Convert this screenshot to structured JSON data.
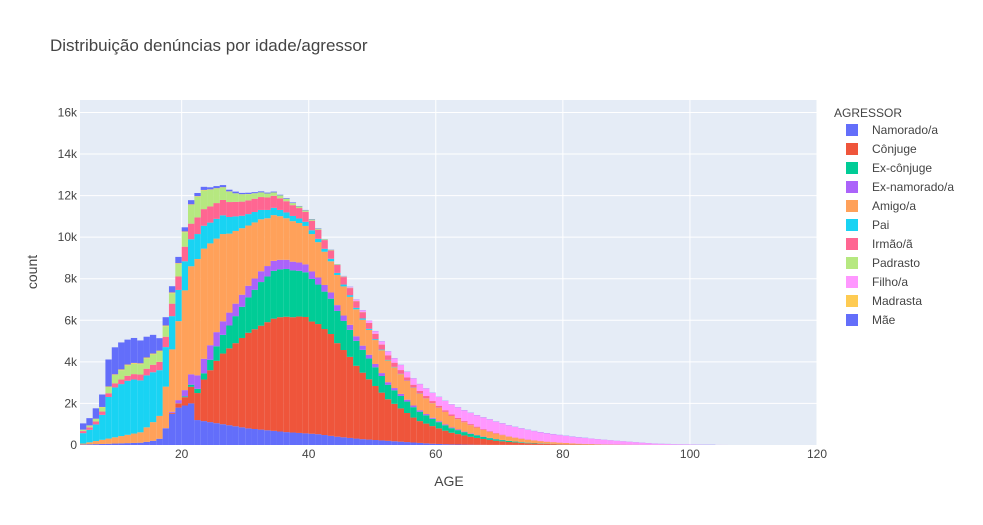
{
  "chart_data": {
    "type": "bar",
    "barmode": "stack",
    "title": "Distribuição denúncias por idade/agressor",
    "xlabel": "AGE",
    "ylabel": "count",
    "xlim": [
      4,
      120
    ],
    "ylim": [
      0,
      16600
    ],
    "xticks": [
      20,
      40,
      60,
      80,
      100,
      120
    ],
    "xtick_labels": [
      "20",
      "40",
      "60",
      "80",
      "100",
      "120"
    ],
    "yticks": [
      0,
      2000,
      4000,
      6000,
      8000,
      10000,
      12000,
      14000,
      16000
    ],
    "ytick_labels": [
      "0",
      "2k",
      "4k",
      "6k",
      "8k",
      "10k",
      "12k",
      "14k",
      "16k"
    ],
    "grid": true,
    "legend_title": "AGRESSOR",
    "legend_position": "right",
    "bin_width": 1,
    "x": [
      4,
      5,
      6,
      7,
      8,
      9,
      10,
      11,
      12,
      13,
      14,
      15,
      16,
      17,
      18,
      19,
      20,
      21,
      22,
      23,
      24,
      25,
      26,
      27,
      28,
      29,
      30,
      31,
      32,
      33,
      34,
      35,
      36,
      37,
      38,
      39,
      40,
      41,
      42,
      43,
      44,
      45,
      46,
      47,
      48,
      49,
      50,
      51,
      52,
      53,
      54,
      55,
      56,
      57,
      58,
      59,
      60,
      61,
      62,
      63,
      64,
      65,
      66,
      67,
      68,
      69,
      70,
      71,
      72,
      73,
      74,
      75,
      76,
      77,
      78,
      79,
      80,
      81,
      82,
      83,
      84,
      85,
      86,
      87,
      88,
      89,
      90,
      91,
      92,
      93,
      94,
      95,
      96,
      97,
      98,
      99,
      100,
      101,
      102,
      103,
      104,
      105
    ],
    "series": [
      {
        "name": "Namorado/a",
        "color": "#636efa",
        "values": [
          20,
          30,
          40,
          50,
          60,
          70,
          80,
          90,
          100,
          110,
          150,
          200,
          300,
          800,
          1500,
          1800,
          1900,
          2000,
          1200,
          1150,
          1100,
          1050,
          1000,
          950,
          900,
          850,
          800,
          770,
          740,
          710,
          680,
          650,
          620,
          600,
          580,
          560,
          540,
          520,
          480,
          440,
          400,
          370,
          340,
          310,
          280,
          260,
          240,
          220,
          200,
          180,
          160,
          140,
          120,
          100,
          80,
          60,
          50,
          40,
          30,
          25,
          20,
          15,
          10,
          10,
          5,
          5,
          5,
          5,
          5,
          5,
          5,
          5,
          5,
          5,
          5,
          5,
          5,
          5,
          5,
          5,
          5,
          5,
          5,
          5,
          5,
          5,
          5,
          5,
          5,
          5,
          5,
          5,
          5,
          5,
          5,
          5,
          5,
          5,
          5,
          5,
          0,
          0
        ]
      },
      {
        "name": "Cônjuge",
        "color": "#ef553b",
        "values": [
          0,
          0,
          0,
          0,
          0,
          0,
          0,
          0,
          0,
          0,
          0,
          0,
          0,
          0,
          50,
          200,
          400,
          800,
          1300,
          2000,
          2500,
          3000,
          3400,
          3700,
          4000,
          4300,
          4600,
          4800,
          5000,
          5200,
          5400,
          5500,
          5550,
          5550,
          5600,
          5600,
          5400,
          5300,
          5100,
          4900,
          4500,
          4200,
          3900,
          3500,
          3200,
          2900,
          2600,
          2300,
          2000,
          1800,
          1600,
          1400,
          1200,
          1050,
          950,
          850,
          750,
          650,
          560,
          500,
          440,
          380,
          330,
          280,
          240,
          200,
          170,
          140,
          120,
          100,
          80,
          70,
          60,
          50,
          40,
          30,
          25,
          20,
          15,
          12,
          10,
          8,
          6,
          5,
          4,
          3,
          2,
          2,
          1,
          1,
          0,
          0,
          0,
          0,
          0,
          0,
          0,
          0,
          0,
          0,
          0,
          0
        ]
      },
      {
        "name": "Ex-cônjuge",
        "color": "#00cc96",
        "values": [
          0,
          0,
          0,
          0,
          0,
          0,
          0,
          0,
          0,
          0,
          0,
          0,
          0,
          0,
          0,
          10,
          40,
          100,
          200,
          300,
          500,
          700,
          900,
          1100,
          1300,
          1500,
          1700,
          1900,
          2100,
          2200,
          2300,
          2300,
          2300,
          2250,
          2200,
          2150,
          2050,
          1900,
          1800,
          1700,
          1550,
          1400,
          1300,
          1200,
          1100,
          1000,
          900,
          800,
          700,
          650,
          600,
          550,
          500,
          450,
          400,
          350,
          300,
          260,
          220,
          190,
          160,
          140,
          120,
          100,
          85,
          70,
          60,
          50,
          40,
          30,
          25,
          20,
          15,
          10,
          8,
          6,
          5,
          4,
          3,
          2,
          2,
          1,
          1,
          1,
          0,
          0,
          0,
          0,
          0,
          0,
          0,
          0,
          0,
          0,
          0,
          0,
          0,
          0,
          0,
          0,
          0,
          0
        ]
      },
      {
        "name": "Ex-namorado/a",
        "color": "#ab63fa",
        "values": [
          0,
          0,
          0,
          0,
          0,
          0,
          0,
          0,
          0,
          0,
          0,
          0,
          0,
          10,
          50,
          150,
          300,
          500,
          650,
          700,
          700,
          680,
          650,
          620,
          600,
          580,
          560,
          540,
          520,
          500,
          480,
          460,
          440,
          420,
          400,
          380,
          360,
          340,
          320,
          300,
          280,
          260,
          240,
          220,
          200,
          180,
          160,
          140,
          120,
          110,
          100,
          90,
          80,
          70,
          60,
          50,
          45,
          40,
          35,
          30,
          25,
          20,
          18,
          15,
          12,
          10,
          8,
          6,
          5,
          4,
          3,
          2,
          2,
          1,
          1,
          1,
          0,
          0,
          0,
          0,
          0,
          0,
          0,
          0,
          0,
          0,
          0,
          0,
          0,
          0,
          0,
          0,
          0,
          0,
          0,
          0,
          0,
          0,
          0,
          0,
          0,
          0
        ]
      },
      {
        "name": "Amigo/a",
        "color": "#ffa15a",
        "values": [
          50,
          100,
          150,
          200,
          250,
          300,
          350,
          400,
          450,
          500,
          700,
          900,
          1100,
          2000,
          3000,
          3800,
          4800,
          5200,
          5600,
          5300,
          4900,
          4500,
          4200,
          3800,
          3500,
          3200,
          2900,
          2700,
          2500,
          2300,
          2200,
          2100,
          2000,
          1950,
          1900,
          1850,
          1800,
          1700,
          1600,
          1500,
          1450,
          1400,
          1350,
          1300,
          1250,
          1200,
          1150,
          1100,
          1050,
          1000,
          950,
          900,
          850,
          800,
          750,
          700,
          650,
          600,
          550,
          500,
          450,
          400,
          360,
          320,
          290,
          260,
          230,
          200,
          180,
          160,
          140,
          120,
          100,
          90,
          80,
          70,
          60,
          50,
          40,
          35,
          30,
          25,
          20,
          15,
          12,
          10,
          8,
          6,
          5,
          4,
          3,
          2,
          2,
          1,
          1,
          0,
          0,
          0,
          0,
          0,
          0,
          0
        ]
      },
      {
        "name": "Pai",
        "color": "#19d3f3",
        "values": [
          500,
          600,
          800,
          1200,
          2000,
          2400,
          2500,
          2600,
          2600,
          2500,
          2500,
          2400,
          2200,
          1900,
          1600,
          1500,
          1400,
          1300,
          1200,
          1100,
          1000,
          950,
          900,
          800,
          700,
          600,
          550,
          500,
          450,
          400,
          350,
          300,
          280,
          250,
          220,
          200,
          180,
          160,
          140,
          120,
          100,
          90,
          80,
          70,
          60,
          50,
          40,
          30,
          25,
          20,
          15,
          12,
          10,
          8,
          6,
          5,
          4,
          3,
          2,
          2,
          1,
          1,
          0,
          0,
          0,
          0,
          0,
          0,
          0,
          0,
          0,
          0,
          0,
          0,
          0,
          0,
          0,
          0,
          0,
          0,
          0,
          0,
          0,
          0,
          0,
          0,
          0,
          0,
          0,
          0,
          0,
          0,
          0,
          0,
          0,
          0,
          0,
          0,
          0,
          0,
          0,
          0
        ]
      },
      {
        "name": "Irmão/ã",
        "color": "#ff6692",
        "values": [
          100,
          120,
          140,
          160,
          180,
          200,
          220,
          240,
          260,
          280,
          320,
          360,
          400,
          500,
          600,
          650,
          700,
          750,
          800,
          800,
          780,
          760,
          740,
          720,
          700,
          680,
          660,
          640,
          620,
          600,
          580,
          560,
          540,
          520,
          500,
          480,
          460,
          440,
          420,
          400,
          380,
          360,
          340,
          320,
          300,
          280,
          260,
          240,
          220,
          200,
          180,
          160,
          140,
          120,
          110,
          100,
          90,
          80,
          70,
          60,
          55,
          50,
          45,
          40,
          35,
          30,
          25,
          20,
          18,
          16,
          14,
          12,
          10,
          8,
          6,
          5,
          4,
          3,
          2,
          2,
          1,
          1,
          1,
          0,
          0,
          0,
          0,
          0,
          0,
          0,
          0,
          0,
          0,
          0,
          0,
          0,
          0,
          0,
          0,
          0,
          0,
          0
        ]
      },
      {
        "name": "Padrasto",
        "color": "#b6e880",
        "values": [
          60,
          80,
          120,
          200,
          300,
          400,
          450,
          500,
          500,
          500,
          500,
          500,
          500,
          500,
          500,
          600,
          700,
          900,
          1000,
          900,
          800,
          700,
          600,
          500,
          400,
          350,
          300,
          260,
          220,
          190,
          160,
          140,
          120,
          100,
          80,
          70,
          60,
          50,
          40,
          35,
          30,
          25,
          20,
          15,
          10,
          8,
          6,
          5,
          4,
          3,
          2,
          2,
          1,
          1,
          1,
          0,
          0,
          0,
          0,
          0,
          0,
          0,
          0,
          0,
          0,
          0,
          0,
          0,
          0,
          0,
          0,
          0,
          0,
          0,
          0,
          0,
          0,
          0,
          0,
          0,
          0,
          0,
          0,
          0,
          0,
          0,
          0,
          0,
          0,
          0,
          0,
          0,
          0,
          0,
          0,
          0,
          0,
          0,
          0,
          0,
          0,
          0
        ]
      },
      {
        "name": "Filho/a",
        "color": "#ff97ff",
        "values": [
          0,
          0,
          0,
          0,
          0,
          0,
          0,
          0,
          0,
          0,
          0,
          0,
          0,
          0,
          0,
          0,
          0,
          0,
          0,
          0,
          0,
          0,
          0,
          0,
          0,
          0,
          0,
          0,
          0,
          0,
          0,
          0,
          0,
          0,
          0,
          0,
          0,
          0,
          0,
          0,
          0,
          20,
          40,
          60,
          80,
          100,
          120,
          150,
          180,
          210,
          240,
          270,
          300,
          330,
          360,
          390,
          420,
          450,
          480,
          500,
          520,
          540,
          550,
          560,
          560,
          550,
          540,
          520,
          500,
          480,
          460,
          440,
          420,
          400,
          380,
          360,
          340,
          320,
          300,
          280,
          260,
          240,
          220,
          200,
          180,
          160,
          140,
          120,
          100,
          80,
          60,
          50,
          40,
          30,
          25,
          20,
          15,
          10,
          8,
          5,
          3,
          2
        ]
      },
      {
        "name": "Madrasta",
        "color": "#fecb52",
        "values": [
          10,
          12,
          15,
          20,
          25,
          30,
          35,
          40,
          40,
          40,
          40,
          40,
          40,
          40,
          40,
          40,
          35,
          30,
          25,
          22,
          20,
          18,
          16,
          14,
          12,
          10,
          8,
          6,
          5,
          4,
          3,
          2,
          2,
          1,
          1,
          0,
          0,
          0,
          0,
          0,
          0,
          0,
          0,
          0,
          0,
          0,
          0,
          0,
          0,
          0,
          0,
          0,
          0,
          0,
          0,
          0,
          0,
          0,
          0,
          0,
          0,
          0,
          0,
          0,
          0,
          0,
          0,
          0,
          0,
          0,
          0,
          0,
          0,
          0,
          0,
          0,
          0,
          0,
          0,
          0,
          0,
          0,
          0,
          0,
          0,
          0,
          0,
          0,
          0,
          0,
          0,
          0,
          0,
          0,
          0,
          0,
          0,
          0,
          0,
          0,
          0,
          0
        ]
      },
      {
        "name": "Mãe",
        "color": "#636efa",
        "values": [
          300,
          350,
          500,
          600,
          1300,
          1300,
          1300,
          1200,
          1200,
          1100,
          1000,
          900,
          600,
          400,
          300,
          300,
          200,
          200,
          150,
          150,
          100,
          100,
          100,
          80,
          80,
          60,
          60,
          50,
          50,
          40,
          40,
          30,
          30,
          30,
          20,
          20,
          20,
          20,
          10,
          10,
          10,
          10,
          10,
          10,
          10,
          10,
          10,
          10,
          10,
          10,
          10,
          10,
          10,
          10,
          10,
          10,
          10,
          10,
          10,
          10,
          10,
          10,
          10,
          10,
          10,
          10,
          10,
          10,
          10,
          10,
          10,
          10,
          10,
          10,
          10,
          10,
          10,
          10,
          10,
          10,
          5,
          5,
          5,
          5,
          5,
          5,
          5,
          5,
          5,
          5,
          5,
          5,
          5,
          5,
          5,
          5,
          5,
          5,
          5,
          5,
          0,
          0
        ]
      }
    ]
  }
}
